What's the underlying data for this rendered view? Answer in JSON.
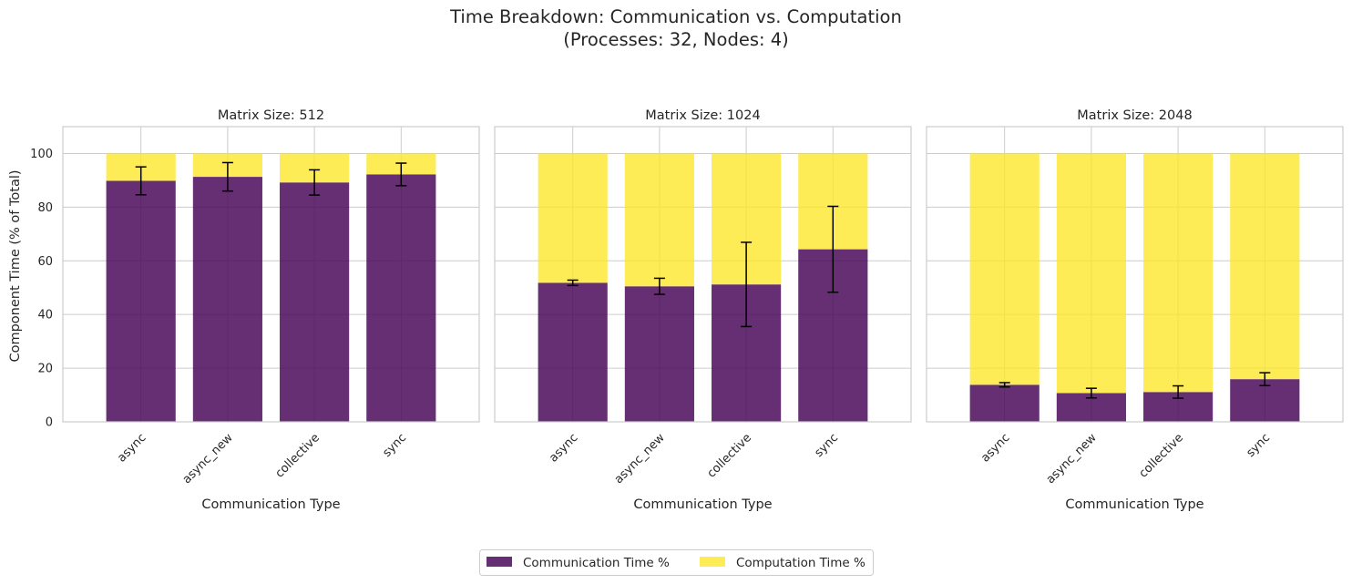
{
  "figure": {
    "title_line1": "Time Breakdown: Communication vs. Computation",
    "title_line2": "(Processes: 32, Nodes: 4)",
    "ylabel": "Component Time (% of Total)",
    "xlabel": "Communication Type"
  },
  "colors": {
    "communication": "#440154",
    "computation": "#fde725",
    "grid": "#cccccc",
    "spine": "#cccccc",
    "error_bar": "#000000"
  },
  "legend": {
    "communication_label": "Communication Time %",
    "computation_label": "Computation Time %",
    "placement": "bottom-center"
  },
  "chart_data": [
    {
      "type": "bar",
      "stacked": true,
      "title": "Matrix Size: 512",
      "xlabel": "Communication Type",
      "ylabel": "Component Time (% of Total)",
      "categories": [
        "async",
        "async_new",
        "collective",
        "sync"
      ],
      "series": [
        {
          "name": "Communication Time %",
          "values": [
            89.8,
            91.3,
            89.2,
            92.2
          ],
          "error": [
            5.2,
            5.3,
            4.7,
            4.2
          ]
        },
        {
          "name": "Computation Time %",
          "values": [
            10.2,
            8.7,
            10.8,
            7.8
          ]
        }
      ],
      "ylim": [
        0,
        110
      ],
      "yticks": [
        0,
        20,
        40,
        60,
        80,
        100
      ],
      "grid": true
    },
    {
      "type": "bar",
      "stacked": true,
      "title": "Matrix Size: 1024",
      "xlabel": "Communication Type",
      "categories": [
        "async",
        "async_new",
        "collective",
        "sync"
      ],
      "series": [
        {
          "name": "Communication Time %",
          "values": [
            51.8,
            50.5,
            51.2,
            64.3
          ],
          "error": [
            1.0,
            3.0,
            15.7,
            16.0
          ]
        },
        {
          "name": "Computation Time %",
          "values": [
            48.2,
            49.5,
            48.8,
            35.7
          ]
        }
      ],
      "ylim": [
        0,
        110
      ],
      "grid": true
    },
    {
      "type": "bar",
      "stacked": true,
      "title": "Matrix Size: 2048",
      "xlabel": "Communication Type",
      "categories": [
        "async",
        "async_new",
        "collective",
        "sync"
      ],
      "series": [
        {
          "name": "Communication Time %",
          "values": [
            13.8,
            10.7,
            11.1,
            15.9
          ],
          "error": [
            0.8,
            1.8,
            2.3,
            2.4
          ]
        },
        {
          "name": "Computation Time %",
          "values": [
            86.2,
            89.3,
            88.9,
            84.1
          ]
        }
      ],
      "ylim": [
        0,
        110
      ],
      "grid": true
    }
  ]
}
